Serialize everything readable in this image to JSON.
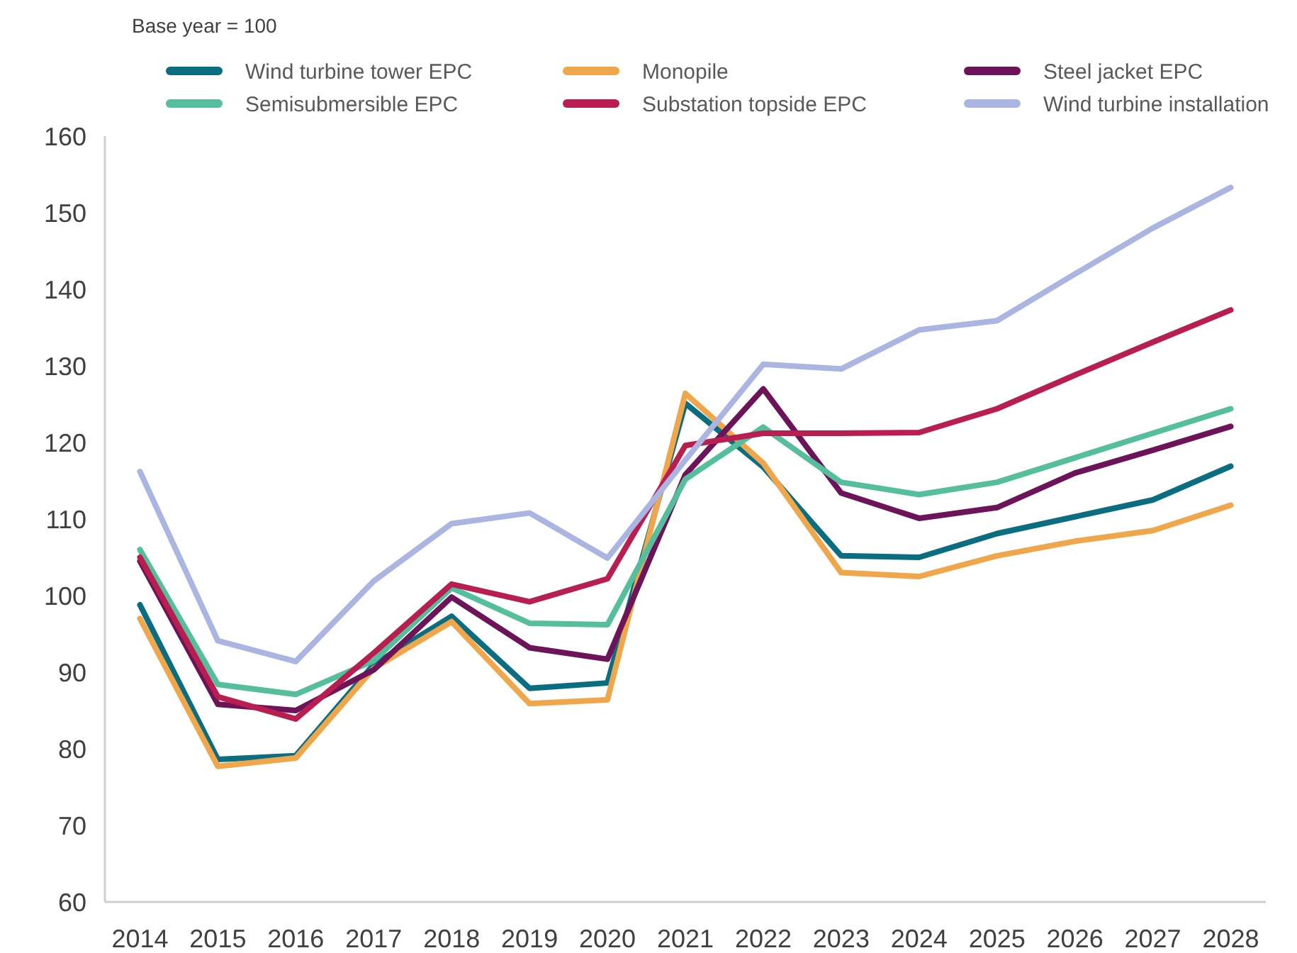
{
  "chart_data": {
    "type": "line",
    "ylabel": "Base year = 100",
    "categories": [
      "2014",
      "2015",
      "2016",
      "2017",
      "2018",
      "2019",
      "2020",
      "2021",
      "2022",
      "2023",
      "2024",
      "2025",
      "2026",
      "2027",
      "2028"
    ],
    "series": [
      {
        "name": "Wind turbine tower EPC",
        "color": "#0b6d80",
        "values": [
          98.8,
          78.6,
          79.1,
          91,
          97.3,
          87.9,
          88.6,
          125.1,
          116.8,
          105.2,
          105,
          108.1,
          110.3,
          112.5,
          116.9
        ]
      },
      {
        "name": "Monopile",
        "color": "#f0a64a",
        "values": [
          97,
          77.7,
          78.8,
          90.5,
          96.6,
          85.9,
          86.4,
          126.4,
          117.3,
          103,
          102.5,
          105.2,
          107.1,
          108.5,
          111.8
        ]
      },
      {
        "name": "Steel jacket EPC",
        "color": "#6c1359",
        "values": [
          104.5,
          85.8,
          85,
          90.3,
          99.8,
          93.2,
          91.7,
          115.8,
          127,
          113.4,
          110.1,
          111.5,
          116,
          119,
          122.1
        ]
      },
      {
        "name": "Semisubmersible EPC",
        "color": "#55bf9d",
        "values": [
          106,
          88.4,
          87.1,
          91.5,
          101,
          96.4,
          96.2,
          115.2,
          122,
          114.8,
          113.2,
          114.8,
          118,
          121.2,
          124.4
        ]
      },
      {
        "name": "Substation topside EPC",
        "color": "#b81f50",
        "values": [
          105,
          86.8,
          83.9,
          92.5,
          101.5,
          99.2,
          102.2,
          119.6,
          121.2,
          121.2,
          121.3,
          124.4,
          128.8,
          133.1,
          137.3
        ]
      },
      {
        "name": "Wind turbine installation",
        "color": "#aab5e1",
        "values": [
          116.2,
          94.1,
          91.4,
          101.9,
          109.4,
          110.8,
          104.9,
          117.7,
          130.2,
          129.6,
          134.7,
          135.9,
          142,
          148,
          153.3
        ]
      }
    ],
    "ylim": [
      60,
      160
    ],
    "yticks": [
      60,
      70,
      80,
      90,
      100,
      110,
      120,
      130,
      140,
      150,
      160
    ],
    "grid": false,
    "legend": "top",
    "marker": "none",
    "line_style": "solid"
  }
}
